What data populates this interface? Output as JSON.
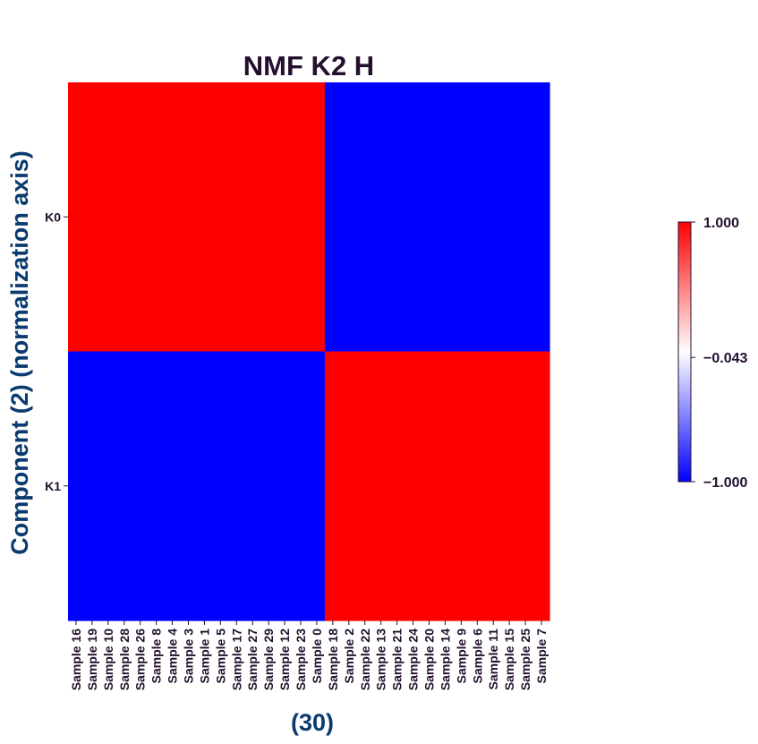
{
  "chart_data": {
    "type": "heatmap",
    "title": "NMF K2 H",
    "xlabel": "(30)",
    "ylabel": "Component (2) (normalization axis)",
    "rows": [
      "K0",
      "K1"
    ],
    "columns": [
      "Sample 16",
      "Sample 19",
      "Sample 10",
      "Sample 28",
      "Sample 26",
      "Sample 8",
      "Sample 4",
      "Sample 3",
      "Sample 1",
      "Sample 5",
      "Sample 17",
      "Sample 27",
      "Sample 29",
      "Sample 12",
      "Sample 23",
      "Sample 0",
      "Sample 18",
      "Sample 2",
      "Sample 22",
      "Sample 13",
      "Sample 21",
      "Sample 24",
      "Sample 20",
      "Sample 14",
      "Sample 9",
      "Sample 6",
      "Sample 11",
      "Sample 15",
      "Sample 25",
      "Sample 7"
    ],
    "values": [
      [
        1,
        1,
        1,
        1,
        1,
        1,
        1,
        1,
        1,
        1,
        1,
        1,
        1,
        1,
        1,
        1,
        -1,
        -1,
        -1,
        -1,
        -1,
        -1,
        -1,
        -1,
        -1,
        -1,
        -1,
        -1,
        -1,
        -1
      ],
      [
        -1,
        -1,
        -1,
        -1,
        -1,
        -1,
        -1,
        -1,
        -1,
        -1,
        -1,
        -1,
        -1,
        -1,
        -1,
        -1,
        1,
        1,
        1,
        1,
        1,
        1,
        1,
        1,
        1,
        1,
        1,
        1,
        1,
        1
      ]
    ],
    "colorbar": {
      "min": -1.0,
      "max": 1.0,
      "ticks": [
        "1.000",
        "−0.043",
        "−1.000"
      ],
      "tick_values": [
        1.0,
        -0.043,
        -1.0
      ],
      "colors": {
        "low": "#0000ff",
        "mid": "#ffffff",
        "high": "#ff0000"
      }
    },
    "grid": false
  },
  "colors": {
    "title": "#230f2e",
    "axis_label": "#0b3a6e",
    "tick_label": "#230f2e"
  }
}
